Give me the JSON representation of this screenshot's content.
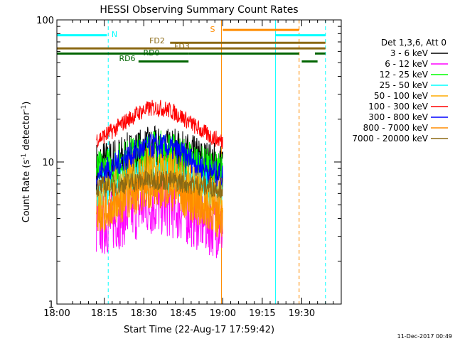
{
  "chart_data": {
    "type": "line",
    "title": "HESSI Observing Summary Count Rates",
    "xlabel": "Start Time (22-Aug-17 17:59:42)",
    "ylabel": "Count Rate (s",
    "ylabel_sup1": "-1",
    "ylabel_mid": " detector",
    "ylabel_sup2": "-1",
    "ylabel_end": ")",
    "y_scale": "log",
    "ylim": [
      1,
      100
    ],
    "xlim_minutes": [
      0,
      108
    ],
    "x_ticks": [
      {
        "m": 0,
        "label": "18:00"
      },
      {
        "m": 18,
        "label": "18:15"
      },
      {
        "m": 33,
        "label": "18:30"
      },
      {
        "m": 48,
        "label": "18:45"
      },
      {
        "m": 63,
        "label": "19:00"
      },
      {
        "m": 78,
        "label": "19:15"
      },
      {
        "m": 93,
        "label": "19:30"
      }
    ],
    "y_ticks": [
      {
        "v": 1,
        "label": "1"
      },
      {
        "v": 10,
        "label": "10"
      },
      {
        "v": 100,
        "label": "100"
      }
    ],
    "legend_title": "Det 1,3,6, Att 0",
    "legend_position": "right",
    "series": [
      {
        "name": "3 - 6 keV",
        "color": "#000000",
        "base": 9,
        "peak": 12
      },
      {
        "name": "6 - 12 keV",
        "color": "#ff00ff",
        "base": 3.3,
        "peak": 5
      },
      {
        "name": "12 - 25 keV",
        "color": "#00ff00",
        "base": 8,
        "peak": 12
      },
      {
        "name": "25 - 50 keV",
        "color": "#00ffff",
        "base": 6,
        "peak": 8
      },
      {
        "name": "50 - 100 keV",
        "color": "#ffaa00",
        "base": 4.5,
        "peak": 8
      },
      {
        "name": "100 - 300 keV",
        "color": "#ff0000",
        "base": 13,
        "peak": 24
      },
      {
        "name": "300 - 800 keV",
        "color": "#0000ff",
        "base": 7.5,
        "peak": 13
      },
      {
        "name": "800 - 7000 keV",
        "color": "#ff8c00",
        "base": 4,
        "peak": 6.5
      },
      {
        "name": "7000 - 20000 keV",
        "color": "#8b6914",
        "base": 6.5,
        "peak": 7.5
      }
    ],
    "data_window_minutes": [
      15,
      63
    ],
    "flags": [
      {
        "label": "N",
        "color": "#00ffff",
        "y": 78,
        "segments": [
          [
            0,
            19
          ],
          [
            83,
            102
          ]
        ]
      },
      {
        "label": "S",
        "color": "#ff8c00",
        "y": 85,
        "segments": [
          [
            63,
            92
          ]
        ]
      },
      {
        "label": "FD2",
        "color": "#8b6914",
        "y": 69,
        "segments": [
          [
            43,
            102
          ]
        ]
      },
      {
        "label": "FD3",
        "color": "#8b6914",
        "y": 63,
        "segments": [
          [
            0,
            102
          ]
        ]
      },
      {
        "label": "RD0",
        "color": "#006400",
        "y": 58,
        "segments": [
          [
            0,
            50
          ],
          [
            50,
            92
          ],
          [
            98,
            102
          ]
        ]
      },
      {
        "label": "RD6",
        "color": "#006400",
        "y": 51,
        "segments": [
          [
            31,
            50
          ],
          [
            93,
            99
          ]
        ]
      }
    ],
    "vlines": [
      {
        "m": 0,
        "color": "#00ffff",
        "style": "solid"
      },
      {
        "m": 19.5,
        "color": "#00ffff",
        "style": "dashed"
      },
      {
        "m": 62.5,
        "color": "#ff8c00",
        "style": "solid"
      },
      {
        "m": 83,
        "color": "#00ffff",
        "style": "solid"
      },
      {
        "m": 92,
        "color": "#ff8c00",
        "style": "dashed"
      },
      {
        "m": 102,
        "color": "#00ffff",
        "style": "dashed"
      }
    ]
  },
  "footer_timestamp": "11-Dec-2017 00:49"
}
